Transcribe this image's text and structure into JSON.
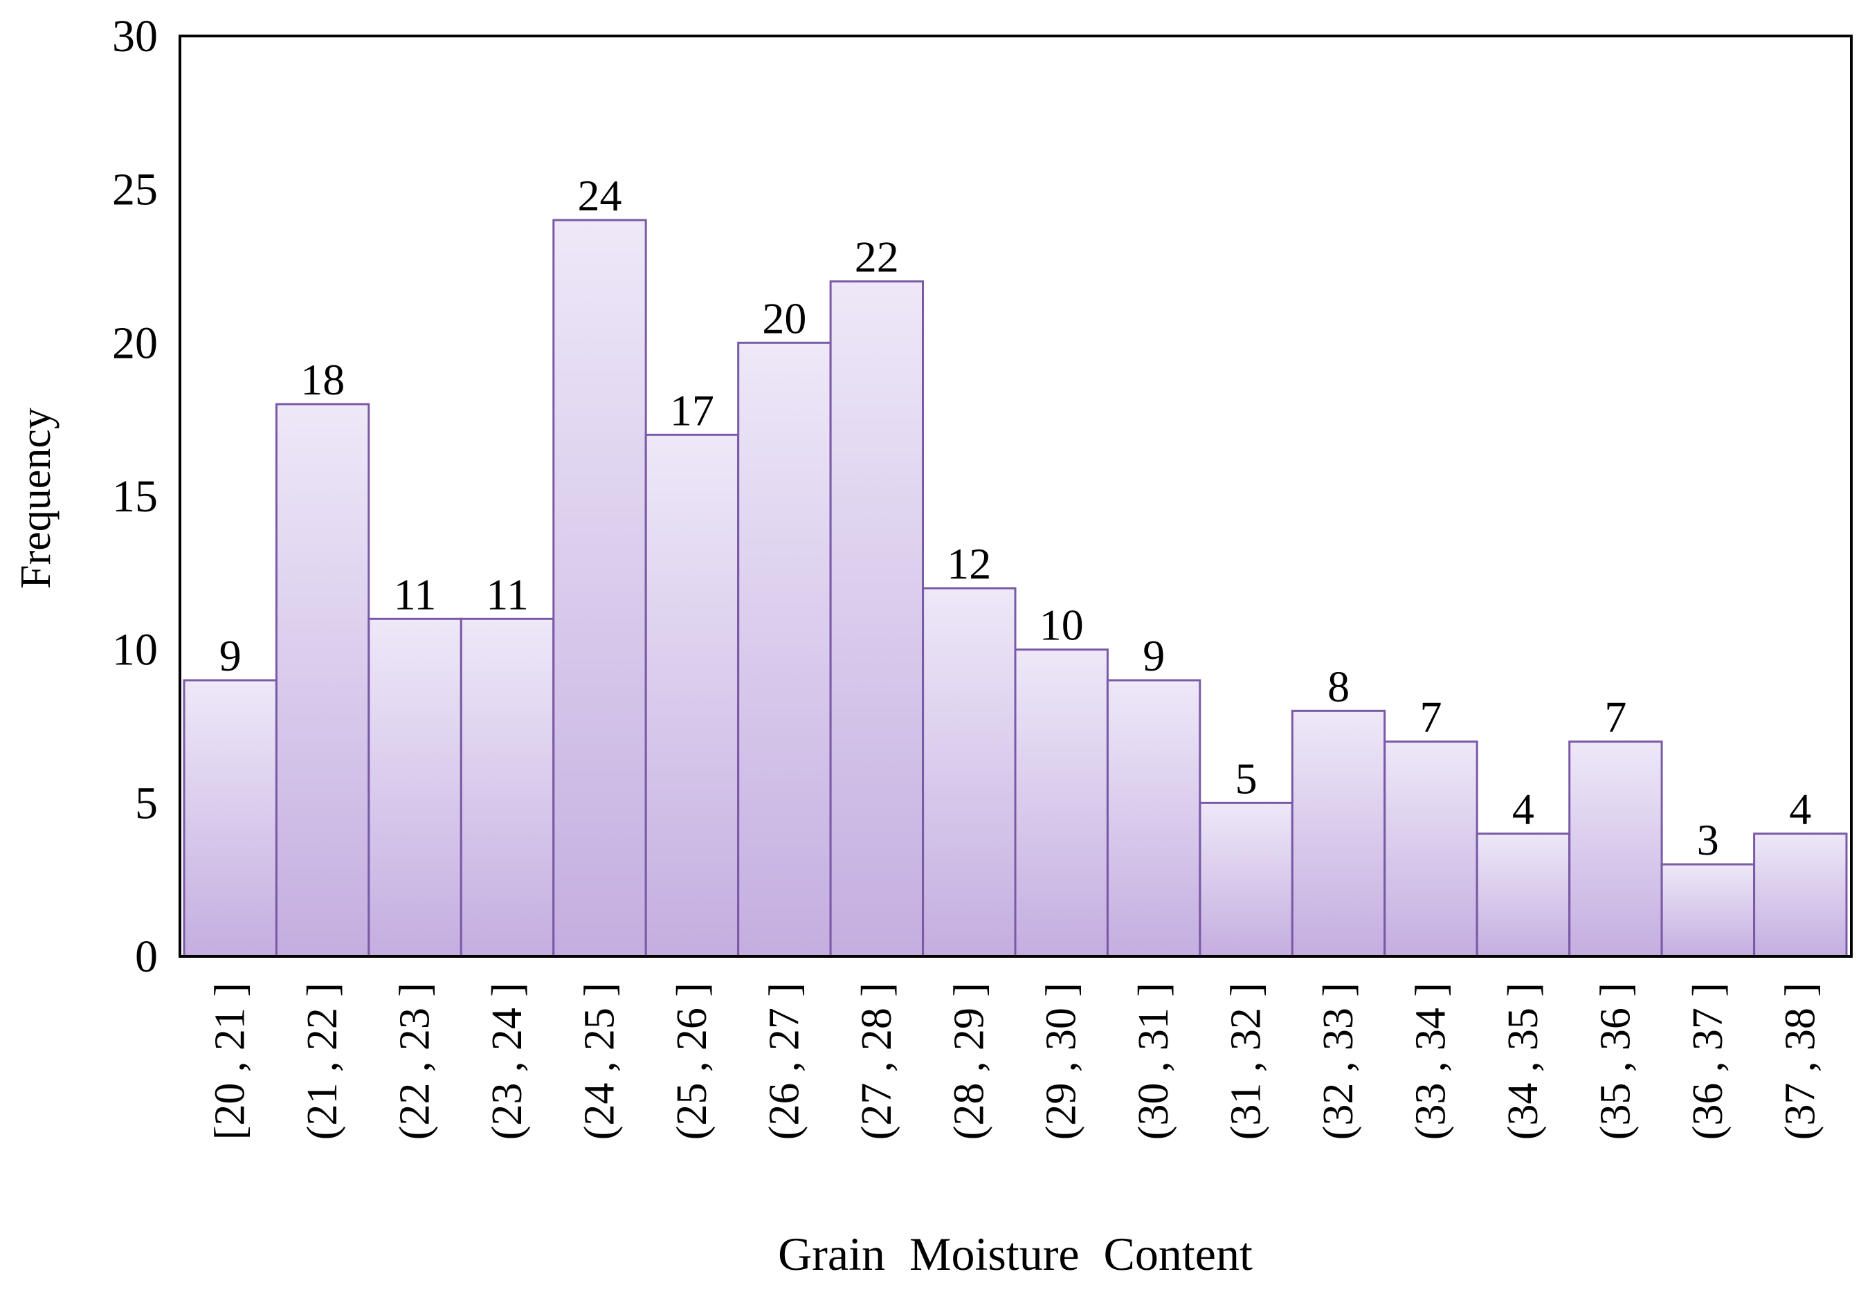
{
  "chart_data": {
    "type": "bar",
    "title": "",
    "xlabel": "Grain Moisture Content",
    "ylabel": "Frequency",
    "ylim": [
      0,
      30
    ],
    "yticks": [
      0,
      5,
      10,
      15,
      20,
      25,
      30
    ],
    "grid": false,
    "legend": "none",
    "categories": [
      "[20 , 21 ]",
      "(21 , 22 ]",
      "(22 , 23 ]",
      "(23 , 24 ]",
      "(24 , 25 ]",
      "(25 , 26 ]",
      "(26 , 27 ]",
      "(27 , 28 ]",
      "(28 , 29 ]",
      "(29 , 30 ]",
      "(30 , 31 ]",
      "(31 , 32 ]",
      "(32 , 33 ]",
      "(33 , 34 ]",
      "(34 , 35 ]",
      "(35 , 36 ]",
      "(36 , 37 ]",
      "(37 , 38 ]"
    ],
    "values": [
      9,
      18,
      11,
      11,
      24,
      17,
      20,
      22,
      12,
      10,
      9,
      5,
      8,
      7,
      4,
      7,
      3,
      4
    ],
    "data_labels": true,
    "colors": {
      "bar_fill_top": "#eee8f8",
      "bar_fill_bottom": "#c4aee0",
      "bar_stroke": "#7a5aa6",
      "axis": "#000000"
    }
  }
}
